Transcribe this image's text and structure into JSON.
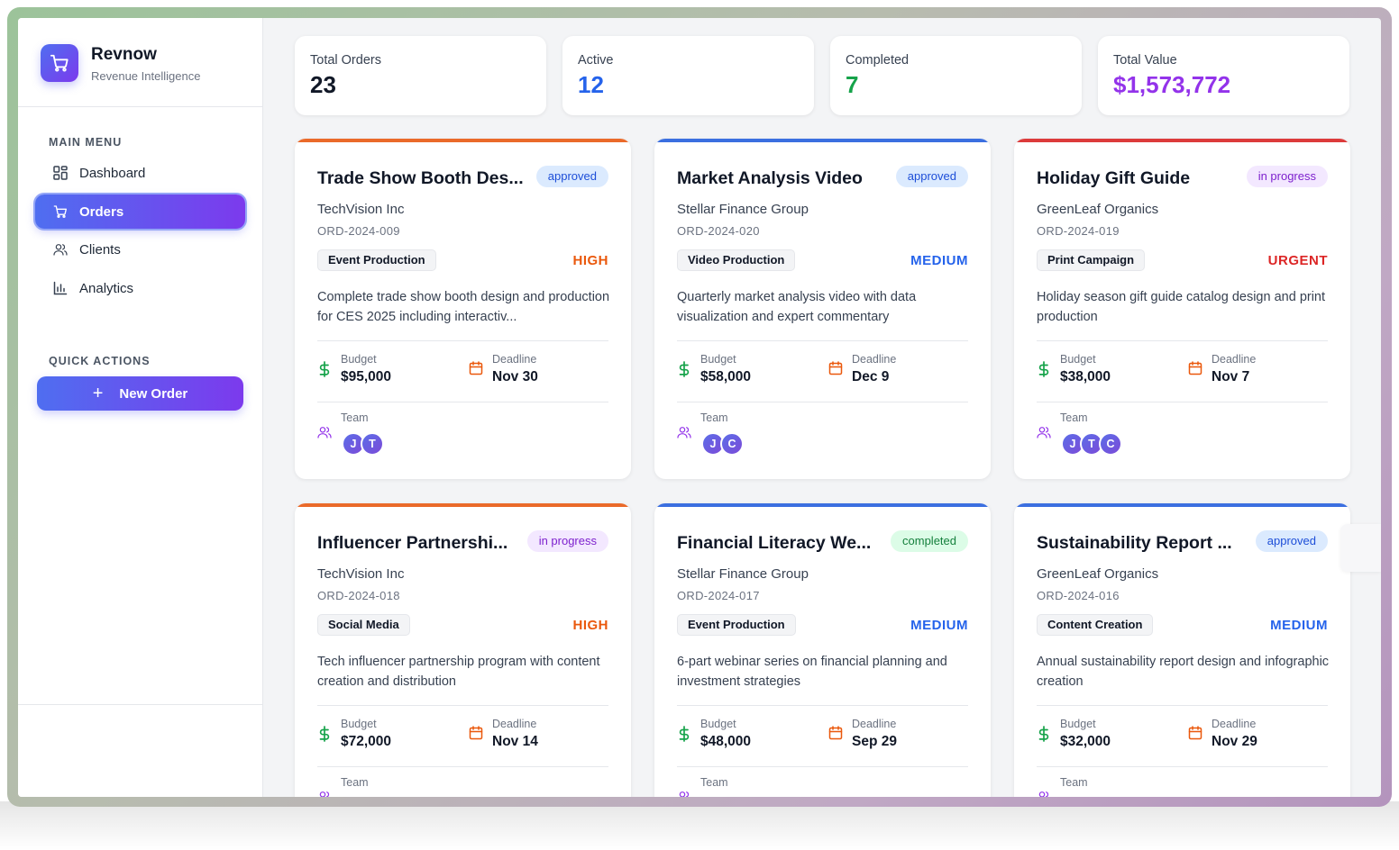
{
  "brand": {
    "name": "Revnow",
    "subtitle": "Revenue Intelligence"
  },
  "sidebar": {
    "main_menu_label": "MAIN MENU",
    "items": [
      {
        "label": "Dashboard",
        "icon": "dashboard-grid-icon",
        "active": false
      },
      {
        "label": "Orders",
        "icon": "cart-icon",
        "active": true
      },
      {
        "label": "Clients",
        "icon": "users-icon",
        "active": false
      },
      {
        "label": "Analytics",
        "icon": "bar-chart-icon",
        "active": false
      }
    ],
    "quick_actions_label": "QUICK ACTIONS",
    "new_order_label": "New Order"
  },
  "stats": [
    {
      "label": "Total Orders",
      "value": "23",
      "color": "#111827"
    },
    {
      "label": "Active",
      "value": "12",
      "color": "#2563eb"
    },
    {
      "label": "Completed",
      "value": "7",
      "color": "#16a34a"
    },
    {
      "label": "Total Value",
      "value": "$1,573,772",
      "color": "#9333ea"
    }
  ],
  "labels": {
    "budget": "Budget",
    "deadline": "Deadline",
    "team": "Team"
  },
  "colors": {
    "approved_bg": "#dbeafe",
    "approved_fg": "#1d4ed8",
    "progress_bg": "#f3e8ff",
    "progress_fg": "#7e22ce",
    "completed_bg": "#dcfce7",
    "completed_fg": "#15803d",
    "high": "#ea580c",
    "medium": "#2563eb",
    "urgent": "#dc2626"
  },
  "orders": [
    {
      "title": "Trade Show Booth Des...",
      "status": "approved",
      "client": "TechVision Inc",
      "id": "ORD-2024-009",
      "category": "Event Production",
      "priority": "HIGH",
      "description": "Complete trade show booth design and production for CES 2025 including interactiv...",
      "budget": "$95,000",
      "deadline": "Nov 30",
      "team": [
        "J",
        "T"
      ],
      "bar_color": "#ea6a2a"
    },
    {
      "title": "Market Analysis Video",
      "status": "approved",
      "client": "Stellar Finance Group",
      "id": "ORD-2024-020",
      "category": "Video Production",
      "priority": "MEDIUM",
      "description": "Quarterly market analysis video with data visualization and expert commentary",
      "budget": "$58,000",
      "deadline": "Dec 9",
      "team": [
        "J",
        "C"
      ],
      "bar_color": "#3b6fe0"
    },
    {
      "title": "Holiday Gift Guide",
      "status": "in progress",
      "client": "GreenLeaf Organics",
      "id": "ORD-2024-019",
      "category": "Print Campaign",
      "priority": "URGENT",
      "description": "Holiday season gift guide catalog design and print production",
      "budget": "$38,000",
      "deadline": "Nov 7",
      "team": [
        "J",
        "T",
        "C"
      ],
      "bar_color": "#dc3b3b"
    },
    {
      "title": "Influencer Partnershi...",
      "status": "in progress",
      "client": "TechVision Inc",
      "id": "ORD-2024-018",
      "category": "Social Media",
      "priority": "HIGH",
      "description": "Tech influencer partnership program with content creation and distribution",
      "budget": "$72,000",
      "deadline": "Nov 14",
      "team": [],
      "bar_color": "#ea6a2a"
    },
    {
      "title": "Financial Literacy We...",
      "status": "completed",
      "client": "Stellar Finance Group",
      "id": "ORD-2024-017",
      "category": "Event Production",
      "priority": "MEDIUM",
      "description": "6-part webinar series on financial planning and investment strategies",
      "budget": "$48,000",
      "deadline": "Sep 29",
      "team": [],
      "bar_color": "#3b6fe0"
    },
    {
      "title": "Sustainability Report ...",
      "status": "approved",
      "client": "GreenLeaf Organics",
      "id": "ORD-2024-016",
      "category": "Content Creation",
      "priority": "MEDIUM",
      "description": "Annual sustainability report design and infographic creation",
      "budget": "$32,000",
      "deadline": "Nov 29",
      "team": [],
      "bar_color": "#3b6fe0"
    }
  ]
}
